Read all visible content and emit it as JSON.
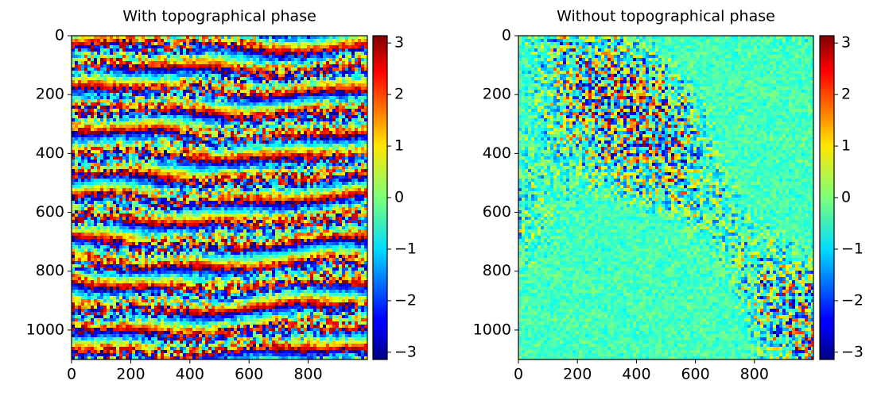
{
  "chart_data": [
    {
      "type": "image",
      "title": "With topographical phase",
      "colormap": "jet",
      "xlim": [
        0,
        1000
      ],
      "ylim": [
        1100,
        0
      ],
      "xticks": [
        0,
        200,
        400,
        600,
        800
      ],
      "yticks": [
        0,
        200,
        400,
        600,
        800,
        1000
      ],
      "colorbar": {
        "lim": [
          -3.14159,
          3.14159
        ],
        "ticks": [
          3,
          2,
          1,
          0,
          {
            "value": -1,
            "label": "−1"
          },
          {
            "value": -2,
            "label": "−2"
          },
          {
            "value": -3,
            "label": "−3"
          }
        ]
      }
    },
    {
      "type": "image",
      "title": "Without topographical phase",
      "colormap": "jet",
      "xlim": [
        0,
        1000
      ],
      "ylim": [
        1100,
        0
      ],
      "xticks": [
        0,
        200,
        400,
        600,
        800
      ],
      "yticks": [
        0,
        200,
        400,
        600,
        800,
        1000
      ],
      "colorbar": {
        "lim": [
          -3.14159,
          3.14159
        ],
        "ticks": [
          3,
          2,
          1,
          0,
          {
            "value": -1,
            "label": "−1"
          },
          {
            "value": -2,
            "label": "−2"
          },
          {
            "value": -3,
            "label": "−3"
          }
        ]
      }
    }
  ]
}
